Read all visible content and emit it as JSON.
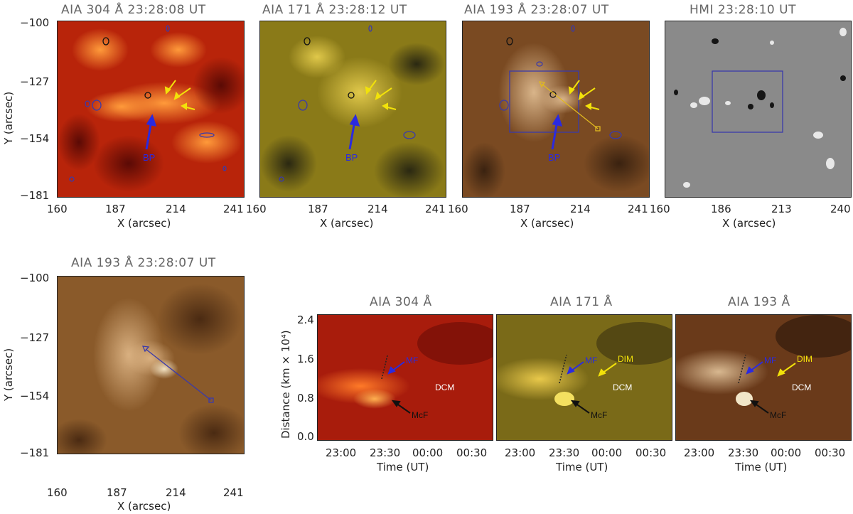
{
  "top_row": [
    {
      "title": "AIA 304 Å 23:28:08 UT",
      "xticks": [
        "160",
        "187",
        "214",
        "241"
      ],
      "xlabel": "X (arcsec)",
      "ylabel": "Y (arcsec)",
      "yticks": [
        "−100",
        "−127",
        "−154",
        "−181"
      ],
      "label_bp": "BP"
    },
    {
      "title": "AIA 171 Å 23:28:12 UT",
      "xticks": [
        "160",
        "187",
        "214",
        "241"
      ],
      "xlabel": "X (arcsec)",
      "label_bp": "BP"
    },
    {
      "title": "AIA 193 Å 23:28:07 UT",
      "xticks": [
        "160",
        "187",
        "214",
        "241"
      ],
      "xlabel": "X (arcsec)",
      "label_bp": "BP"
    },
    {
      "title": "HMI 23:28:10 UT",
      "xticks": [
        "160",
        "186",
        "213",
        "240"
      ],
      "xlabel": "X (arcsec)"
    }
  ],
  "bottom_left": {
    "title": "AIA 193 Å 23:28:07 UT",
    "xticks": [
      "160",
      "187",
      "214",
      "241"
    ],
    "xlabel": "X (arcsec)",
    "ylabel": "Y (arcsec)",
    "yticks": [
      "−100",
      "−127",
      "−154",
      "−181"
    ]
  },
  "timeslices": [
    {
      "title": "AIA 304 Å",
      "xticks": [
        "23:00",
        "23:30",
        "00:00",
        "00:30"
      ],
      "xlabel": "Time (UT)",
      "label_mf": "MF",
      "label_mcf": "McF",
      "label_dcm": "DCM"
    },
    {
      "title": "AIA 171 Å",
      "xticks": [
        "23:00",
        "23:30",
        "00:00",
        "00:30"
      ],
      "xlabel": "Time (UT)",
      "label_mf": "MF",
      "label_mcf": "McF",
      "label_dcm": "DCM",
      "label_dim": "DIM"
    },
    {
      "title": "AIA 193 Å",
      "xticks": [
        "23:00",
        "23:30",
        "00:00",
        "00:30"
      ],
      "xlabel": "Time (UT)",
      "label_mf": "MF",
      "label_mcf": "McF",
      "label_dcm": "DCM",
      "label_dim": "DIM"
    }
  ],
  "timeslice_axis": {
    "ylabel": "Distance (km × 10⁴)",
    "yticks": [
      "2.4",
      "1.6",
      "0.8",
      "0.0"
    ]
  },
  "colors": {
    "aia304": "#b8240a",
    "aia171": "#8a7a18",
    "aia193": "#7a4a22",
    "hmi": "#8a8a8a",
    "contour": "#3a3aaa",
    "arrow_yellow": "#f2e20a",
    "arrow_blue": "#2a2ae0"
  }
}
